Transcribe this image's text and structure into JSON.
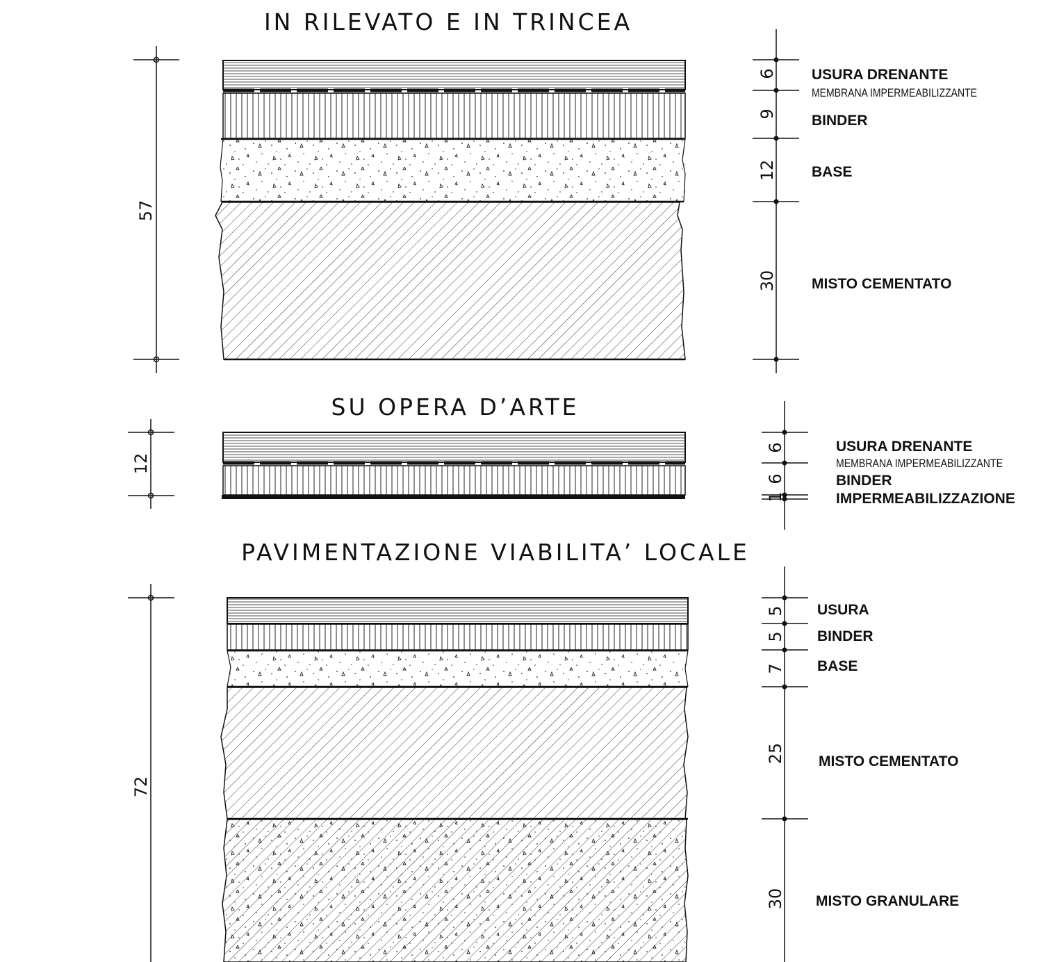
{
  "sections": [
    {
      "title": "IN RILEVATO E IN TRINCEA",
      "total_thickness": "57",
      "layers": [
        {
          "name": "USURA DRENANTE",
          "thickness": "6",
          "pattern": "horizontal-lines"
        },
        {
          "name": "MEMBRANA IMPERMEABILIZZANTE",
          "thickness": "",
          "pattern": "membrane"
        },
        {
          "name": "BINDER",
          "thickness": "9",
          "pattern": "vertical-lines"
        },
        {
          "name": "BASE",
          "thickness": "12",
          "pattern": "concrete-dots"
        },
        {
          "name": "MISTO CEMENTATO",
          "thickness": "30",
          "pattern": "diagonal-hatch"
        }
      ]
    },
    {
      "title": "SU OPERA D’ARTE",
      "total_thickness": "12",
      "layers": [
        {
          "name": "USURA DRENANTE",
          "thickness": "6",
          "pattern": "horizontal-lines"
        },
        {
          "name": "MEMBRANA IMPERMEABILIZZANTE",
          "thickness": "",
          "pattern": "membrane"
        },
        {
          "name": "BINDER",
          "thickness": "6",
          "pattern": "vertical-lines"
        },
        {
          "name": "IMPERMEABILIZZAZIONE",
          "thickness": "1",
          "pattern": "solid-black"
        }
      ]
    },
    {
      "title": "PAVIMENTAZIONE VIABILITA’ LOCALE",
      "total_thickness": "72",
      "layers": [
        {
          "name": "USURA",
          "thickness": "5",
          "pattern": "horizontal-lines"
        },
        {
          "name": "BINDER",
          "thickness": "5",
          "pattern": "vertical-lines"
        },
        {
          "name": "BASE",
          "thickness": "7",
          "pattern": "concrete-dots"
        },
        {
          "name": "MISTO CEMENTATO",
          "thickness": "25",
          "pattern": "diagonal-hatch"
        },
        {
          "name": "MISTO GRANULARE",
          "thickness": "30",
          "pattern": "diagonal-hatch-dots"
        }
      ]
    }
  ]
}
